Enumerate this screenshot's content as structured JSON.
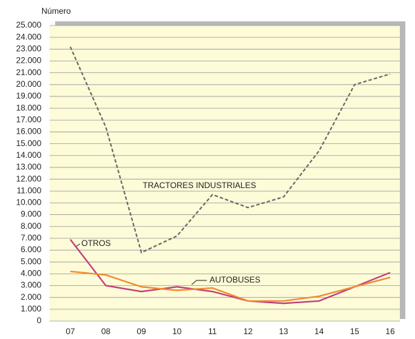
{
  "chart_data": {
    "type": "line",
    "y_label": "Número",
    "categories": [
      "07",
      "08",
      "09",
      "10",
      "11",
      "12",
      "13",
      "14",
      "15",
      "16"
    ],
    "series": [
      {
        "name": "TRACTORES INDUSTRIALES",
        "color": "#666666",
        "dashed": true,
        "values": [
          23200,
          16400,
          5800,
          7200,
          10700,
          9600,
          10500,
          14400,
          20000,
          20900
        ]
      },
      {
        "name": "OTROS",
        "color": "#c2407a",
        "values": [
          6900,
          3000,
          2500,
          2900,
          2500,
          1700,
          1500,
          1700,
          2900,
          4100
        ]
      },
      {
        "name": "AUTOBUSES",
        "color": "#f08a30",
        "values": [
          4200,
          3900,
          2900,
          2600,
          2800,
          1700,
          1700,
          2100,
          2900,
          3700
        ]
      }
    ],
    "ylim": [
      0,
      25000
    ],
    "yticks": [
      0,
      {
        "value": 1000,
        "label": "1.000"
      },
      {
        "value": 2000,
        "label": "2.000"
      },
      {
        "value": 3000,
        "label": "3.000"
      },
      {
        "value": 4000,
        "label": "4.000"
      },
      {
        "value": 5000,
        "label": "5.000"
      },
      {
        "value": 6000,
        "label": "6.000"
      },
      {
        "value": 7000,
        "label": "7.000"
      },
      {
        "value": 8000,
        "label": "8.000"
      },
      {
        "value": 9000,
        "label": "9.000"
      },
      {
        "value": 10000,
        "label": "10.000"
      },
      {
        "value": 11000,
        "label": "11.000"
      },
      {
        "value": 12000,
        "label": "12.000"
      },
      {
        "value": 13000,
        "label": "13.000"
      },
      {
        "value": 14000,
        "label": "14.000"
      },
      {
        "value": 15000,
        "label": "15.000"
      },
      {
        "value": 16000,
        "label": "16.000"
      },
      {
        "value": 17000,
        "label": "17.000"
      },
      {
        "value": 18000,
        "label": "18.000"
      },
      {
        "value": 19000,
        "label": "19.000"
      },
      {
        "value": 20000,
        "label": "20.000"
      },
      {
        "value": 21000,
        "label": "21.000"
      },
      {
        "value": 22000,
        "label": "22.000"
      },
      {
        "value": 23000,
        "label": "23.000"
      },
      {
        "value": 24000,
        "label": "24.000"
      },
      {
        "value": 25000,
        "label": "25.000"
      }
    ],
    "grid": true
  }
}
